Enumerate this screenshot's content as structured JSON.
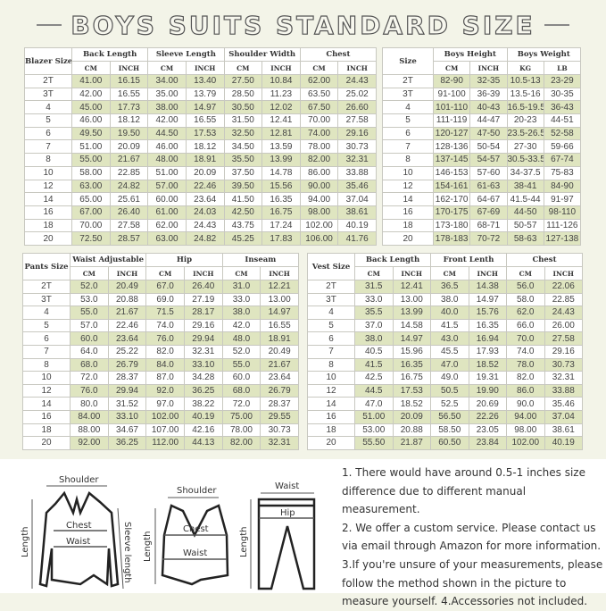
{
  "title": "BOYS SUITS STANDARD SIZE",
  "colors": {
    "background": "#f3f4e8",
    "row_highlight": "#dfe5c0"
  },
  "blazer_table": {
    "size_header": "Blazer Size",
    "groups": [
      "Back Length",
      "Sleeve Length",
      "Shoulder Width",
      "Chest"
    ],
    "units": [
      "CM",
      "INCH",
      "CM",
      "INCH",
      "CM",
      "INCH",
      "CM",
      "INCH"
    ],
    "rows": [
      [
        "2T",
        "41.00",
        "16.15",
        "34.00",
        "13.40",
        "27.50",
        "10.84",
        "62.00",
        "24.43"
      ],
      [
        "3T",
        "42.00",
        "16.55",
        "35.00",
        "13.79",
        "28.50",
        "11.23",
        "63.50",
        "25.02"
      ],
      [
        "4",
        "45.00",
        "17.73",
        "38.00",
        "14.97",
        "30.50",
        "12.02",
        "67.50",
        "26.60"
      ],
      [
        "5",
        "46.00",
        "18.12",
        "42.00",
        "16.55",
        "31.50",
        "12.41",
        "70.00",
        "27.58"
      ],
      [
        "6",
        "49.50",
        "19.50",
        "44.50",
        "17.53",
        "32.50",
        "12.81",
        "74.00",
        "29.16"
      ],
      [
        "7",
        "51.00",
        "20.09",
        "46.00",
        "18.12",
        "34.50",
        "13.59",
        "78.00",
        "30.73"
      ],
      [
        "8",
        "55.00",
        "21.67",
        "48.00",
        "18.91",
        "35.50",
        "13.99",
        "82.00",
        "32.31"
      ],
      [
        "10",
        "58.00",
        "22.85",
        "51.00",
        "20.09",
        "37.50",
        "14.78",
        "86.00",
        "33.88"
      ],
      [
        "12",
        "63.00",
        "24.82",
        "57.00",
        "22.46",
        "39.50",
        "15.56",
        "90.00",
        "35.46"
      ],
      [
        "14",
        "65.00",
        "25.61",
        "60.00",
        "23.64",
        "41.50",
        "16.35",
        "94.00",
        "37.04"
      ],
      [
        "16",
        "67.00",
        "26.40",
        "61.00",
        "24.03",
        "42.50",
        "16.75",
        "98.00",
        "38.61"
      ],
      [
        "18",
        "70.00",
        "27.58",
        "62.00",
        "24.43",
        "43.75",
        "17.24",
        "102.00",
        "40.19"
      ],
      [
        "20",
        "72.50",
        "28.57",
        "63.00",
        "24.82",
        "45.25",
        "17.83",
        "106.00",
        "41.76"
      ]
    ]
  },
  "size_table": {
    "size_header": "Size",
    "groups": [
      "Boys Height",
      "Boys Weight"
    ],
    "units": [
      "CM",
      "INCH",
      "KG",
      "LB"
    ],
    "rows": [
      [
        "2T",
        "82-90",
        "32-35",
        "10.5-13",
        "23-29"
      ],
      [
        "3T",
        "91-100",
        "36-39",
        "13.5-16",
        "30-35"
      ],
      [
        "4",
        "101-110",
        "40-43",
        "16.5-19.5",
        "36-43"
      ],
      [
        "5",
        "111-119",
        "44-47",
        "20-23",
        "44-51"
      ],
      [
        "6",
        "120-127",
        "47-50",
        "23.5-26.5",
        "52-58"
      ],
      [
        "7",
        "128-136",
        "50-54",
        "27-30",
        "59-66"
      ],
      [
        "8",
        "137-145",
        "54-57",
        "30.5-33.5",
        "67-74"
      ],
      [
        "10",
        "146-153",
        "57-60",
        "34-37.5",
        "75-83"
      ],
      [
        "12",
        "154-161",
        "61-63",
        "38-41",
        "84-90"
      ],
      [
        "14",
        "162-170",
        "64-67",
        "41.5-44",
        "91-97"
      ],
      [
        "16",
        "170-175",
        "67-69",
        "44-50",
        "98-110"
      ],
      [
        "18",
        "173-180",
        "68-71",
        "50-57",
        "111-126"
      ],
      [
        "20",
        "178-183",
        "70-72",
        "58-63",
        "127-138"
      ]
    ]
  },
  "pants_table": {
    "size_header": "Pants Size",
    "groups": [
      "Waist Adjustable",
      "Hip",
      "Inseam"
    ],
    "units": [
      "CM",
      "INCH",
      "CM",
      "INCH",
      "CM",
      "INCH"
    ],
    "rows": [
      [
        "2T",
        "52.0",
        "20.49",
        "67.0",
        "26.40",
        "31.0",
        "12.21"
      ],
      [
        "3T",
        "53.0",
        "20.88",
        "69.0",
        "27.19",
        "33.0",
        "13.00"
      ],
      [
        "4",
        "55.0",
        "21.67",
        "71.5",
        "28.17",
        "38.0",
        "14.97"
      ],
      [
        "5",
        "57.0",
        "22.46",
        "74.0",
        "29.16",
        "42.0",
        "16.55"
      ],
      [
        "6",
        "60.0",
        "23.64",
        "76.0",
        "29.94",
        "48.0",
        "18.91"
      ],
      [
        "7",
        "64.0",
        "25.22",
        "82.0",
        "32.31",
        "52.0",
        "20.49"
      ],
      [
        "8",
        "68.0",
        "26.79",
        "84.0",
        "33.10",
        "55.0",
        "21.67"
      ],
      [
        "10",
        "72.0",
        "28.37",
        "87.0",
        "34.28",
        "60.0",
        "23.64"
      ],
      [
        "12",
        "76.0",
        "29.94",
        "92.0",
        "36.25",
        "68.0",
        "26.79"
      ],
      [
        "14",
        "80.0",
        "31.52",
        "97.0",
        "38.22",
        "72.0",
        "28.37"
      ],
      [
        "16",
        "84.00",
        "33.10",
        "102.00",
        "40.19",
        "75.00",
        "29.55"
      ],
      [
        "18",
        "88.00",
        "34.67",
        "107.00",
        "42.16",
        "78.00",
        "30.73"
      ],
      [
        "20",
        "92.00",
        "36.25",
        "112.00",
        "44.13",
        "82.00",
        "32.31"
      ]
    ]
  },
  "vest_table": {
    "size_header": "Vest Size",
    "groups": [
      "Back Length",
      "Front Lenth",
      "Chest"
    ],
    "units": [
      "CM",
      "INCH",
      "CM",
      "INCH",
      "CM",
      "INCH"
    ],
    "rows": [
      [
        "2T",
        "31.5",
        "12.41",
        "36.5",
        "14.38",
        "56.0",
        "22.06"
      ],
      [
        "3T",
        "33.0",
        "13.00",
        "38.0",
        "14.97",
        "58.0",
        "22.85"
      ],
      [
        "4",
        "35.5",
        "13.99",
        "40.0",
        "15.76",
        "62.0",
        "24.43"
      ],
      [
        "5",
        "37.0",
        "14.58",
        "41.5",
        "16.35",
        "66.0",
        "26.00"
      ],
      [
        "6",
        "38.0",
        "14.97",
        "43.0",
        "16.94",
        "70.0",
        "27.58"
      ],
      [
        "7",
        "40.5",
        "15.96",
        "45.5",
        "17.93",
        "74.0",
        "29.16"
      ],
      [
        "8",
        "41.5",
        "16.35",
        "47.0",
        "18.52",
        "78.0",
        "30.73"
      ],
      [
        "10",
        "42.5",
        "16.75",
        "49.0",
        "19.31",
        "82.0",
        "32.31"
      ],
      [
        "12",
        "44.5",
        "17.53",
        "50.5",
        "19.90",
        "86.0",
        "33.88"
      ],
      [
        "14",
        "47.0",
        "18.52",
        "52.5",
        "20.69",
        "90.0",
        "35.46"
      ],
      [
        "16",
        "51.00",
        "20.09",
        "56.50",
        "22.26",
        "94.00",
        "37.04"
      ],
      [
        "18",
        "53.00",
        "20.88",
        "58.50",
        "23.05",
        "98.00",
        "38.61"
      ],
      [
        "20",
        "55.50",
        "21.87",
        "60.50",
        "23.84",
        "102.00",
        "40.19"
      ]
    ]
  },
  "diagrams": {
    "blazer": {
      "shoulder": "Shoulder",
      "chest": "Chest",
      "waist": "Waist",
      "length": "Length",
      "sleeve": "Sleeve length"
    },
    "vest": {
      "shoulder": "Shoulder",
      "chest": "Chest",
      "waist": "Waist",
      "length": "Length"
    },
    "pants": {
      "waist": "Waist",
      "hip": "Hip",
      "length": "Length"
    }
  },
  "notes": [
    "1. There would have around 0.5-1 inches size difference due to different manual measurement.",
    "2. We offer a custom service. Please contact us via email through Amazon for more information.",
    "3.If you're unsure of your measurements, please follow the method shown in the picture to measure yourself. 4.Accessories not included."
  ]
}
